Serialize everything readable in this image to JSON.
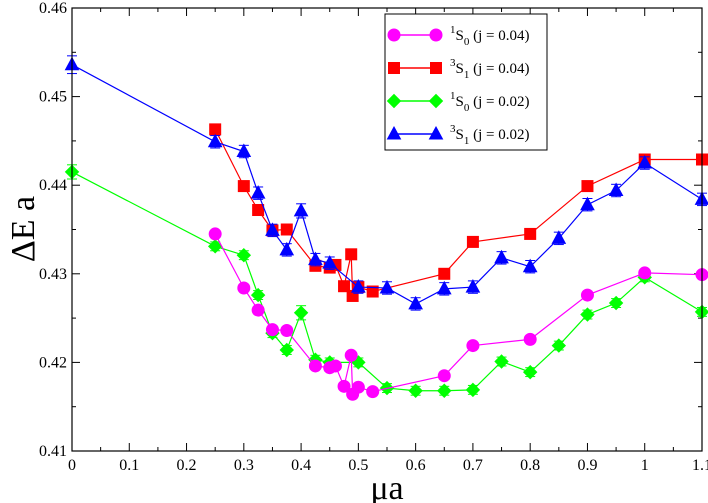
{
  "chart_data": {
    "type": "line",
    "title": "",
    "xlabel": "μa",
    "ylabel": "ΔE a",
    "xlim": [
      0,
      1.1
    ],
    "ylim": [
      0.41,
      0.46
    ],
    "xticks": [
      "0",
      "0.1",
      "0.2",
      "0.3",
      "0.4",
      "0.5",
      "0.6",
      "0.7",
      "0.8",
      "0.9",
      "1",
      "1.1"
    ],
    "yticks": [
      "0.41",
      "0.42",
      "0.43",
      "0.44",
      "0.45",
      "0.46"
    ],
    "legend_position": "top-right",
    "series": [
      {
        "id": "s1",
        "state": "1",
        "spin": "S",
        "sub": "0",
        "j": "(j = 0.04)",
        "color": "#ff00ff",
        "marker": "circle",
        "x": [
          0.25,
          0.3,
          0.325,
          0.35,
          0.375,
          0.425,
          0.45,
          0.46,
          0.475,
          0.4875,
          0.49,
          0.5,
          0.525,
          0.65,
          0.7,
          0.8,
          0.9,
          1.0,
          1.1
        ],
        "y": [
          0.4345,
          0.4284,
          0.4259,
          0.4237,
          0.4236,
          0.4196,
          0.4194,
          0.4196,
          0.4173,
          0.4208,
          0.4164,
          0.4172,
          0.4167,
          0.4185,
          0.4219,
          0.4226,
          0.4276,
          0.4301,
          0.4299
        ],
        "err": [
          0.0004,
          0.0004,
          0.0004,
          0.0004,
          0.0004,
          0.0004,
          0.0004,
          0.0004,
          0.0004,
          0.0004,
          0.0004,
          0.0004,
          0.0004,
          0.0004,
          0.0004,
          0.0004,
          0.0004,
          0.0004,
          0.0004
        ]
      },
      {
        "id": "s2",
        "state": "3",
        "spin": "S",
        "sub": "1",
        "j": "(j = 0.04)",
        "color": "#ff0000",
        "marker": "square",
        "x": [
          0.25,
          0.3,
          0.325,
          0.35,
          0.375,
          0.425,
          0.45,
          0.46,
          0.475,
          0.4875,
          0.49,
          0.5,
          0.525,
          0.65,
          0.7,
          0.8,
          0.9,
          1.0,
          1.1
        ],
        "y": [
          0.4463,
          0.4399,
          0.4372,
          0.4349,
          0.435,
          0.4309,
          0.4307,
          0.431,
          0.4286,
          0.4322,
          0.4275,
          0.4285,
          0.428,
          0.43,
          0.4336,
          0.4345,
          0.4399,
          0.4429,
          0.4429
        ],
        "err": [
          0.0004,
          0.0004,
          0.0004,
          0.0004,
          0.0004,
          0.0004,
          0.0004,
          0.0004,
          0.0004,
          0.0004,
          0.0004,
          0.0004,
          0.0004,
          0.0004,
          0.0004,
          0.0004,
          0.0004,
          0.0004,
          0.0004
        ]
      },
      {
        "id": "s3",
        "state": "1",
        "spin": "S",
        "sub": "0",
        "j": "(j = 0.02)",
        "color": "#00ff00",
        "marker": "diamond",
        "x": [
          0.0,
          0.25,
          0.3,
          0.325,
          0.35,
          0.375,
          0.4,
          0.425,
          0.45,
          0.5,
          0.55,
          0.6,
          0.65,
          0.7,
          0.75,
          0.8,
          0.85,
          0.9,
          0.95,
          1.0,
          1.1
        ],
        "y": [
          0.4415,
          0.4331,
          0.4321,
          0.4276,
          0.4233,
          0.4214,
          0.4256,
          0.4203,
          0.42,
          0.42,
          0.4171,
          0.4168,
          0.4168,
          0.4169,
          0.4201,
          0.4189,
          0.4219,
          0.4254,
          0.4267,
          0.4296,
          0.4257
        ],
        "err": [
          0.0008,
          0.0005,
          0.0005,
          0.0005,
          0.0005,
          0.0005,
          0.0008,
          0.0005,
          0.0005,
          0.0005,
          0.0005,
          0.0005,
          0.0005,
          0.0005,
          0.0005,
          0.0005,
          0.0005,
          0.0005,
          0.0005,
          0.0005,
          0.0005
        ]
      },
      {
        "id": "s4",
        "state": "3",
        "spin": "S",
        "sub": "1",
        "j": "(j = 0.02)",
        "color": "#0000ff",
        "marker": "triangle",
        "x": [
          0.0,
          0.25,
          0.3,
          0.325,
          0.35,
          0.375,
          0.4,
          0.425,
          0.45,
          0.5,
          0.55,
          0.6,
          0.65,
          0.7,
          0.75,
          0.8,
          0.85,
          0.9,
          0.95,
          1.0,
          1.1
        ],
        "y": [
          0.4536,
          0.4449,
          0.4438,
          0.4391,
          0.4349,
          0.4327,
          0.4371,
          0.4316,
          0.4312,
          0.4285,
          0.4284,
          0.4266,
          0.4283,
          0.4285,
          0.4318,
          0.4308,
          0.434,
          0.4378,
          0.4394,
          0.4425,
          0.4384
        ],
        "err": [
          0.001,
          0.0007,
          0.0007,
          0.0007,
          0.0007,
          0.0007,
          0.0008,
          0.0007,
          0.0007,
          0.0007,
          0.0007,
          0.0007,
          0.0007,
          0.0007,
          0.0007,
          0.0007,
          0.0007,
          0.0007,
          0.0007,
          0.0007,
          0.0007
        ]
      }
    ]
  }
}
